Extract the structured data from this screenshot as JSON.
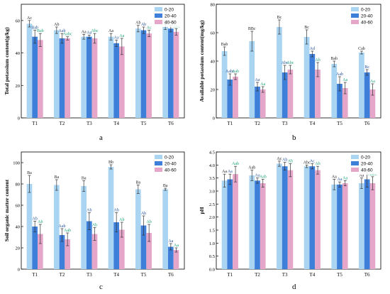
{
  "figure": {
    "panel_letters": [
      "a",
      "b",
      "c",
      "d"
    ]
  },
  "colors": {
    "s1": "#a9d4f2",
    "s2": "#3d7fd9",
    "s3": "#e6a6c9",
    "label_blue": "#1f4f99",
    "label_green": "#1aa37a",
    "label_highlight": "#b9f3de"
  },
  "chart_data": [
    {
      "panel": "a",
      "type": "bar",
      "title": "",
      "xlabel": "",
      "ylabel": "Total potassium content(g/kg)",
      "categories": [
        "T1",
        "T2",
        "T3",
        "T4",
        "T5",
        "T6"
      ],
      "ylim": [
        0,
        70
      ],
      "yticks": [
        0,
        20,
        40,
        60
      ],
      "legend_position": "top-right",
      "series": [
        {
          "name": "0-20",
          "values": [
            58,
            54,
            50,
            50,
            55,
            56
          ],
          "errors": [
            2,
            2,
            1.5,
            2,
            2,
            1.5
          ],
          "labels": [
            "Ac",
            "Ab",
            "Aa",
            "Aa",
            "Ab",
            "Ab"
          ]
        },
        {
          "name": "20-40",
          "values": [
            50,
            49,
            50,
            46,
            54,
            55
          ],
          "errors": [
            4,
            3,
            1,
            2,
            2,
            2
          ],
          "labels": [
            "Bab",
            "Aab",
            "Aa",
            "Aa",
            "Ab",
            "ABb"
          ]
        },
        {
          "name": "40-60",
          "values": [
            48,
            49,
            49,
            44,
            52,
            53
          ],
          "errors": [
            4,
            1,
            3,
            5,
            2,
            2
          ],
          "labels": [
            "Bab",
            "Aabc",
            "Abc",
            "Aa",
            "Ac",
            "Abc"
          ]
        }
      ]
    },
    {
      "panel": "b",
      "type": "bar",
      "title": "",
      "xlabel": "",
      "ylabel": "Available potassium content(mg/kg)",
      "categories": [
        "T1",
        "T2",
        "T3",
        "T4",
        "T5",
        "T6"
      ],
      "ylim": [
        0,
        80
      ],
      "yticks": [
        0,
        20,
        40,
        60,
        80
      ],
      "legend_position": "top-right",
      "series": [
        {
          "name": "0-20",
          "values": [
            47,
            54,
            64,
            57,
            38,
            46
          ],
          "errors": [
            3,
            7,
            5,
            5,
            2,
            1
          ],
          "labels": [
            "Bab",
            "BBc",
            "Bc",
            "Bc",
            "Bab",
            "Cab"
          ]
        },
        {
          "name": "20-40",
          "values": [
            27,
            22,
            32,
            45,
            24,
            32
          ],
          "errors": [
            4,
            3,
            5,
            2,
            5,
            2
          ],
          "labels": [
            "Aabc",
            "Aa",
            "Abc",
            "Ad",
            "Aab",
            "Bc"
          ]
        },
        {
          "name": "40-60",
          "values": [
            29,
            20,
            34,
            34,
            21,
            20
          ],
          "errors": [
            2,
            2,
            3,
            5,
            4,
            4
          ],
          "labels": [
            "Aab",
            "Aa",
            "Abc",
            "Ab",
            "Aa",
            "Aa"
          ]
        }
      ]
    },
    {
      "panel": "c",
      "type": "bar",
      "title": "",
      "xlabel": "",
      "ylabel": "Soil organic matter content",
      "categories": [
        "T1",
        "T2",
        "T3",
        "T4",
        "T5",
        "T6"
      ],
      "ylim": [
        0,
        110
      ],
      "yticks": [
        0,
        20,
        40,
        60,
        80,
        100
      ],
      "legend_position": "top-right",
      "series": [
        {
          "name": "0-20",
          "values": [
            80,
            79,
            78,
            96,
            75,
            75
          ],
          "errors": [
            8,
            5,
            5,
            2,
            4,
            1
          ],
          "labels": [
            "Ba",
            "Ba",
            "Ba",
            "Bb",
            "Ba",
            "Ba"
          ]
        },
        {
          "name": "20-40",
          "values": [
            40,
            32,
            45,
            44,
            41,
            21
          ],
          "errors": [
            5,
            6,
            8,
            9,
            9,
            3
          ],
          "labels": [
            "Ab",
            "Aab",
            "Ab",
            "Ab",
            "Ab",
            "Aa"
          ]
        },
        {
          "name": "40-60",
          "values": [
            33,
            28,
            33,
            37,
            34,
            18
          ],
          "errors": [
            9,
            6,
            6,
            7,
            8,
            2
          ],
          "labels": [
            "Ab",
            "Aab",
            "Ab",
            "Ab",
            "Ab",
            "Aa"
          ]
        }
      ]
    },
    {
      "panel": "d",
      "type": "bar",
      "title": "",
      "xlabel": "",
      "ylabel": "pH",
      "categories": [
        "T1",
        "T2",
        "T3",
        "T4",
        "T5",
        "T6"
      ],
      "ylim": [
        0,
        4.5
      ],
      "yticks": [
        0.0,
        0.5,
        1.0,
        1.5,
        2.0,
        2.5,
        3.0,
        3.5,
        4.0,
        4.5
      ],
      "legend_position": "top-right",
      "series": [
        {
          "name": "0-20",
          "values": [
            3.4,
            3.6,
            4.05,
            3.95,
            3.25,
            3.3
          ],
          "errors": [
            0.25,
            0.2,
            0.1,
            0.05,
            0.2,
            0.2
          ],
          "labels": [
            "Aa",
            "Aab",
            "Ac",
            "Abc",
            "Aa",
            "Aa"
          ]
        },
        {
          "name": "20-40",
          "values": [
            3.45,
            3.4,
            3.95,
            3.95,
            3.25,
            3.45
          ],
          "errors": [
            0.2,
            0.1,
            0.15,
            0.1,
            0.1,
            0.3
          ],
          "labels": [
            "Aa",
            "Aa",
            "Ab",
            "Ac",
            "Aa",
            "Aa"
          ]
        },
        {
          "name": "40-60",
          "values": [
            3.65,
            3.3,
            3.8,
            3.8,
            3.3,
            3.3
          ],
          "errors": [
            0.3,
            0.15,
            0.25,
            0.15,
            0.1,
            0.25
          ],
          "labels": [
            "Aab",
            "Aab",
            "Ab",
            "Ab",
            "Aa",
            "Aabc"
          ]
        }
      ]
    }
  ]
}
